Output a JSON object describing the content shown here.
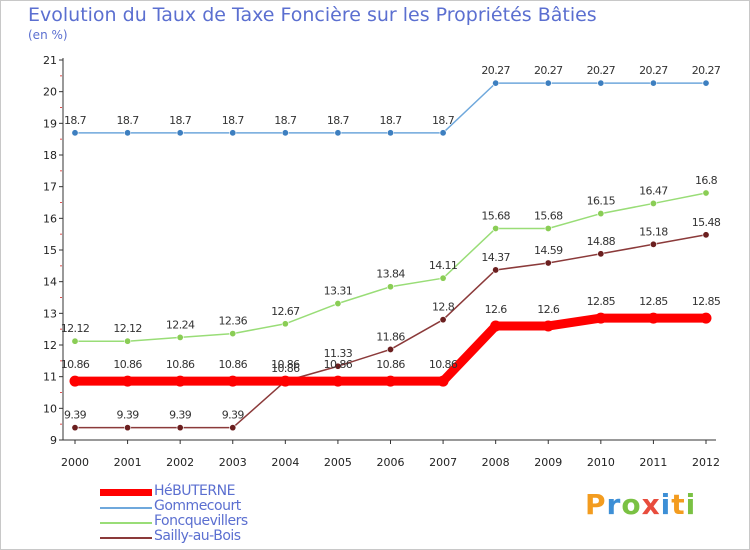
{
  "chart_data": {
    "type": "line",
    "title": "Evolution du Taux de Taxe Foncière sur les Propriétés Bâties",
    "subtitle": "(en %)",
    "x": [
      "2000",
      "2001",
      "2002",
      "2003",
      "2004",
      "2005",
      "2006",
      "2007",
      "2008",
      "2009",
      "2010",
      "2011",
      "2012"
    ],
    "ylim": [
      9,
      21
    ],
    "yticks": [
      9,
      10,
      11,
      12,
      13,
      14,
      15,
      16,
      17,
      18,
      19,
      20,
      21
    ],
    "grid": false,
    "legend_position": "bottom-left",
    "series": [
      {
        "name": "HéBUTERNE",
        "color": "#ff0000",
        "values": [
          10.86,
          10.86,
          10.86,
          10.86,
          10.86,
          10.86,
          10.86,
          10.86,
          12.6,
          12.6,
          12.85,
          12.85,
          12.85
        ],
        "labels": [
          "10.86",
          "10.86",
          "10.86",
          "10.86",
          "10.86",
          "10.86",
          "10.86",
          "10.86",
          "12.6",
          "12.6",
          "12.85",
          "12.85",
          "12.85"
        ]
      },
      {
        "name": "Gommecourt",
        "color": "#6fa8dc",
        "values": [
          18.7,
          18.7,
          18.7,
          18.7,
          18.7,
          18.7,
          18.7,
          18.7,
          20.27,
          20.27,
          20.27,
          20.27,
          20.27
        ],
        "labels": [
          "18.7",
          "18.7",
          "18.7",
          "18.7",
          "18.7",
          "18.7",
          "18.7",
          "18.7",
          "20.27",
          "20.27",
          "20.27",
          "20.27",
          "20.27"
        ]
      },
      {
        "name": "Foncquevillers",
        "color": "#99dd77",
        "values": [
          12.12,
          12.12,
          12.24,
          12.36,
          12.67,
          13.31,
          13.84,
          14.11,
          15.68,
          15.68,
          16.15,
          16.47,
          16.8
        ],
        "labels": [
          "12.12",
          "12.12",
          "12.24",
          "12.36",
          "12.67",
          "13.31",
          "13.84",
          "14.11",
          "15.68",
          "15.68",
          "16.15",
          "16.47",
          "16.8"
        ]
      },
      {
        "name": "Sailly-au-Bois",
        "color": "#8b3a3a",
        "values": [
          9.39,
          9.39,
          9.39,
          9.39,
          10.86,
          11.33,
          11.86,
          12.8,
          14.37,
          14.59,
          14.88,
          15.18,
          15.48
        ],
        "labels": [
          "9.39",
          "9.39",
          "9.39",
          "9.39",
          "10.86",
          "11.33",
          "11.86",
          "12.8",
          "14.37",
          "14.59",
          "14.88",
          "15.18",
          "15.48"
        ]
      }
    ]
  },
  "legend": [
    {
      "name": "HéBUTERNE"
    },
    {
      "name": "Gommecourt"
    },
    {
      "name": "Foncquevillers"
    },
    {
      "name": "Sailly-au-Bois"
    }
  ],
  "logo": {
    "letters": [
      "P",
      "r",
      "o",
      "x",
      "i",
      "t",
      "i"
    ]
  }
}
